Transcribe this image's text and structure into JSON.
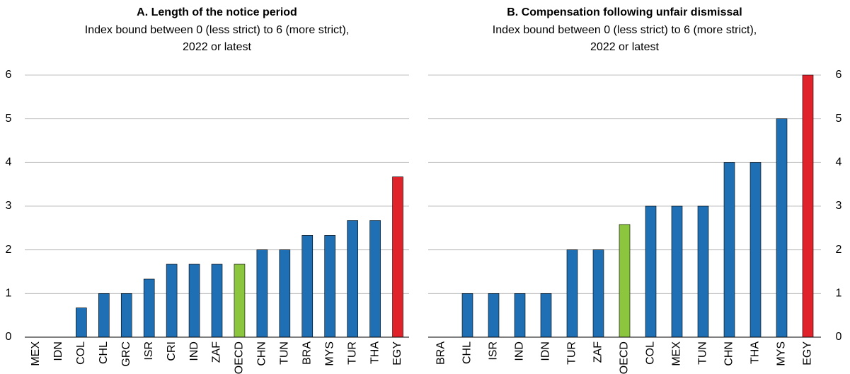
{
  "chart_data": [
    {
      "type": "bar",
      "title": "A. Length of the notice period",
      "subtitle": [
        "Index bound between 0 (less strict) to 6 (more strict),",
        "2022 or latest"
      ],
      "categories": [
        "MEX",
        "IDN",
        "COL",
        "CHL",
        "GRC",
        "ISR",
        "CRI",
        "IND",
        "ZAF",
        "OECD",
        "CHN",
        "TUN",
        "BRA",
        "MYS",
        "TUR",
        "THA",
        "EGY"
      ],
      "values": [
        0,
        0,
        0.67,
        1,
        1,
        1.33,
        1.67,
        1.67,
        1.67,
        1.67,
        2,
        2,
        2.33,
        2.33,
        2.67,
        2.67,
        3.67
      ],
      "colors": [
        "#1f6fb5",
        "#1f6fb5",
        "#1f6fb5",
        "#1f6fb5",
        "#1f6fb5",
        "#1f6fb5",
        "#1f6fb5",
        "#1f6fb5",
        "#1f6fb5",
        "#8cc63e",
        "#1f6fb5",
        "#1f6fb5",
        "#1f6fb5",
        "#1f6fb5",
        "#1f6fb5",
        "#1f6fb5",
        "#e0232b"
      ],
      "ylim": [
        0,
        6
      ],
      "yticks": [
        0,
        1,
        2,
        3,
        4,
        5,
        6
      ],
      "grid": true,
      "y_axis_side": "left"
    },
    {
      "type": "bar",
      "title": "B. Compensation following unfair dismissal",
      "subtitle": [
        "Index bound between 0 (less strict) to 6 (more strict),",
        "2022 or latest"
      ],
      "categories": [
        "BRA",
        "CHL",
        "ISR",
        "IND",
        "IDN",
        "TUR",
        "ZAF",
        "OECD",
        "COL",
        "MEX",
        "TUN",
        "CHN",
        "THA",
        "MYS",
        "EGY"
      ],
      "values": [
        0,
        1,
        1,
        1,
        1,
        2,
        2,
        2.58,
        3,
        3,
        3,
        4,
        4,
        5,
        6
      ],
      "colors": [
        "#1f6fb5",
        "#1f6fb5",
        "#1f6fb5",
        "#1f6fb5",
        "#1f6fb5",
        "#1f6fb5",
        "#1f6fb5",
        "#8cc63e",
        "#1f6fb5",
        "#1f6fb5",
        "#1f6fb5",
        "#1f6fb5",
        "#1f6fb5",
        "#1f6fb5",
        "#e0232b"
      ],
      "ylim": [
        0,
        6
      ],
      "yticks": [
        0,
        1,
        2,
        3,
        4,
        5,
        6
      ],
      "grid": true,
      "y_axis_side": "right"
    }
  ]
}
